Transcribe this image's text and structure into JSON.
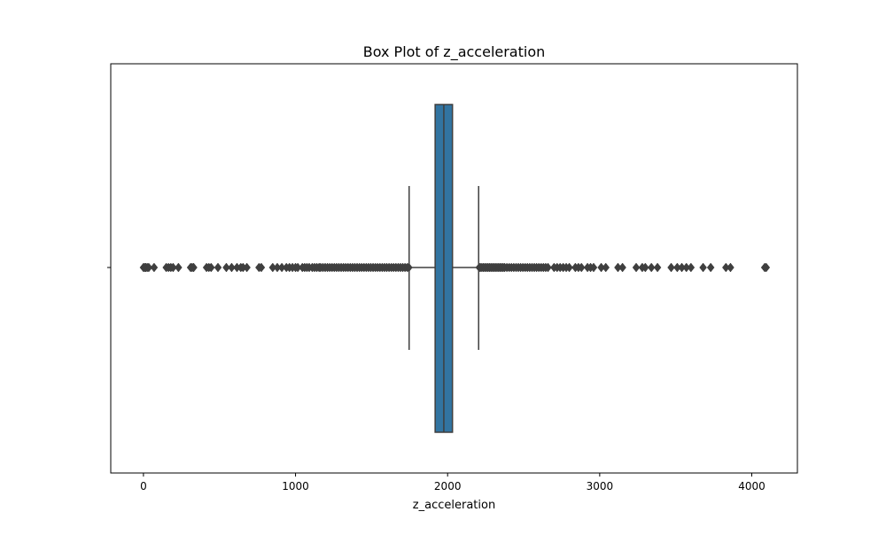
{
  "chart_data": {
    "type": "box",
    "title": "Box Plot of z_acceleration",
    "xlabel": "z_acceleration",
    "ylabel": "",
    "xlim": [
      -215,
      4300
    ],
    "xticks": [
      0,
      1000,
      2000,
      3000,
      4000
    ],
    "tick_labels": [
      "0",
      "1000",
      "2000",
      "3000",
      "4000"
    ],
    "box_color": "#3274a1",
    "line_color": "#3f3f3f",
    "whisker_low": 1747,
    "q1": 1918,
    "median": 1975,
    "q3": 2032,
    "whisker_high": 2204,
    "outliers": [
      0,
      8,
      15,
      25,
      35,
      70,
      150,
      165,
      180,
      195,
      230,
      310,
      320,
      330,
      415,
      430,
      445,
      490,
      545,
      580,
      615,
      640,
      655,
      680,
      760,
      775,
      850,
      880,
      910,
      940,
      960,
      980,
      1000,
      1015,
      1045,
      1060,
      1075,
      1090,
      1110,
      1125,
      1140,
      1155,
      1165,
      1180,
      1195,
      1210,
      1225,
      1240,
      1255,
      1270,
      1285,
      1300,
      1315,
      1330,
      1345,
      1360,
      1375,
      1390,
      1405,
      1420,
      1435,
      1450,
      1465,
      1480,
      1495,
      1510,
      1525,
      1540,
      1555,
      1570,
      1585,
      1600,
      1615,
      1630,
      1645,
      1660,
      1675,
      1690,
      1705,
      1720,
      1735,
      1745,
      2208,
      2215,
      2225,
      2235,
      2245,
      2255,
      2265,
      2275,
      2285,
      2295,
      2305,
      2315,
      2325,
      2335,
      2345,
      2355,
      2365,
      2375,
      2390,
      2405,
      2420,
      2435,
      2450,
      2465,
      2480,
      2495,
      2510,
      2525,
      2540,
      2555,
      2570,
      2585,
      2600,
      2615,
      2630,
      2645,
      2660,
      2700,
      2720,
      2740,
      2760,
      2780,
      2800,
      2840,
      2860,
      2880,
      2920,
      2940,
      2960,
      3010,
      3040,
      3120,
      3150,
      3240,
      3280,
      3300,
      3340,
      3380,
      3470,
      3510,
      3540,
      3570,
      3600,
      3680,
      3730,
      3830,
      3860,
      4085,
      4095
    ]
  }
}
